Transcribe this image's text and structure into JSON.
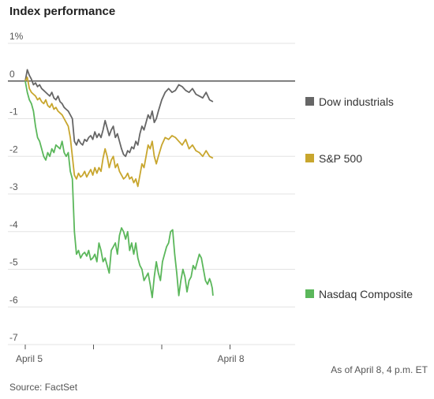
{
  "chart_data": {
    "type": "line",
    "title": "Index performance",
    "y_tick_labels": [
      "1%",
      "0",
      "-1",
      "-2",
      "-3",
      "-4",
      "-5",
      "-6",
      "-7"
    ],
    "y_ticks": [
      1,
      0,
      -1,
      -2,
      -3,
      -4,
      -5,
      -6,
      -7
    ],
    "ylim": [
      -7,
      1
    ],
    "x_tick_labels": [
      "April 5",
      "April 8"
    ],
    "x_day_ticks": [
      "April 5",
      "",
      "",
      "April 8",
      ""
    ],
    "grid": "horizontal",
    "note": "As of April 8, 4 p.m. ET",
    "source": "Source: FactSet",
    "series": [
      {
        "name": "Dow industrials",
        "color": "#666666",
        "values": [
          0,
          0.3,
          0.15,
          0.05,
          -0.1,
          -0.05,
          -0.15,
          -0.1,
          -0.2,
          -0.25,
          -0.3,
          -0.35,
          -0.4,
          -0.3,
          -0.45,
          -0.5,
          -0.4,
          -0.55,
          -0.6,
          -0.7,
          -0.75,
          -0.8,
          -0.9,
          -1.0,
          -1.6,
          -1.7,
          -1.55,
          -1.65,
          -1.7,
          -1.55,
          -1.6,
          -1.5,
          -1.45,
          -1.55,
          -1.35,
          -1.5,
          -1.4,
          -1.5,
          -1.3,
          -1.05,
          -1.25,
          -1.45,
          -1.3,
          -1.2,
          -1.5,
          -1.4,
          -1.6,
          -1.8,
          -1.95,
          -2.0,
          -1.85,
          -1.9,
          -1.75,
          -1.8,
          -1.6,
          -1.7,
          -1.4,
          -1.2,
          -1.3,
          -1.1,
          -0.9,
          -1.0,
          -0.8,
          -1.1,
          -1.0,
          -0.8,
          -0.5,
          -0.3,
          -0.2,
          -0.3,
          -0.25,
          -0.1,
          -0.15,
          -0.25,
          -0.3,
          -0.2,
          -0.35,
          -0.4,
          -0.45,
          -0.3,
          -0.5,
          -0.55
        ],
        "x_days": [
          0.0,
          0.03,
          0.06,
          0.09,
          0.12,
          0.15,
          0.18,
          0.21,
          0.24,
          0.27,
          0.3,
          0.33,
          0.36,
          0.39,
          0.42,
          0.45,
          0.48,
          0.51,
          0.54,
          0.57,
          0.6,
          0.63,
          0.66,
          0.69,
          0.72,
          0.75,
          0.78,
          0.81,
          0.84,
          0.87,
          0.9,
          0.93,
          0.96,
          0.99,
          1.02,
          1.05,
          1.08,
          1.11,
          1.14,
          1.17,
          1.2,
          1.23,
          1.26,
          1.29,
          1.32,
          1.35,
          1.38,
          1.41,
          1.44,
          1.47,
          1.5,
          1.53,
          1.56,
          1.59,
          1.62,
          1.65,
          1.68,
          1.71,
          1.74,
          1.77,
          1.8,
          1.83,
          1.86,
          1.89,
          1.92,
          1.95,
          2.0,
          2.05,
          2.1,
          2.15,
          2.2,
          2.25,
          2.3,
          2.35,
          2.4,
          2.45,
          2.5,
          2.55,
          2.6,
          2.65,
          2.7,
          2.75
        ]
      },
      {
        "name": "S&P 500",
        "color": "#c8a62e",
        "values": [
          0,
          0.1,
          -0.2,
          -0.3,
          -0.35,
          -0.4,
          -0.5,
          -0.45,
          -0.55,
          -0.6,
          -0.5,
          -0.65,
          -0.7,
          -0.6,
          -0.75,
          -0.7,
          -0.8,
          -0.85,
          -0.9,
          -1.0,
          -1.1,
          -1.2,
          -1.5,
          -2.0,
          -2.5,
          -2.6,
          -2.45,
          -2.55,
          -2.5,
          -2.4,
          -2.55,
          -2.45,
          -2.35,
          -2.5,
          -2.3,
          -2.45,
          -2.3,
          -2.4,
          -2.05,
          -1.8,
          -2.0,
          -2.3,
          -2.1,
          -2.0,
          -2.3,
          -2.2,
          -2.4,
          -2.5,
          -2.6,
          -2.55,
          -2.45,
          -2.6,
          -2.55,
          -2.7,
          -2.6,
          -2.8,
          -2.5,
          -2.2,
          -2.3,
          -2.0,
          -1.7,
          -1.8,
          -1.6,
          -2.0,
          -2.2,
          -2.0,
          -1.7,
          -1.5,
          -1.55,
          -1.45,
          -1.5,
          -1.6,
          -1.7,
          -1.55,
          -1.8,
          -1.7,
          -1.85,
          -1.9,
          -2.0,
          -1.85,
          -2.0,
          -2.05
        ],
        "x_days": [
          0.0,
          0.03,
          0.06,
          0.09,
          0.12,
          0.15,
          0.18,
          0.21,
          0.24,
          0.27,
          0.3,
          0.33,
          0.36,
          0.39,
          0.42,
          0.45,
          0.48,
          0.51,
          0.54,
          0.57,
          0.6,
          0.63,
          0.66,
          0.69,
          0.72,
          0.75,
          0.78,
          0.81,
          0.84,
          0.87,
          0.9,
          0.93,
          0.96,
          0.99,
          1.02,
          1.05,
          1.08,
          1.11,
          1.14,
          1.17,
          1.2,
          1.23,
          1.26,
          1.29,
          1.32,
          1.35,
          1.38,
          1.41,
          1.44,
          1.47,
          1.5,
          1.53,
          1.56,
          1.59,
          1.62,
          1.65,
          1.68,
          1.71,
          1.74,
          1.77,
          1.8,
          1.83,
          1.86,
          1.89,
          1.92,
          1.95,
          2.0,
          2.05,
          2.1,
          2.15,
          2.2,
          2.25,
          2.3,
          2.35,
          2.4,
          2.45,
          2.5,
          2.55,
          2.6,
          2.65,
          2.7,
          2.75
        ]
      },
      {
        "name": "Nasdaq Composite",
        "color": "#5bb75b",
        "values": [
          0,
          -0.3,
          -0.5,
          -0.6,
          -0.8,
          -1.2,
          -1.5,
          -1.6,
          -1.8,
          -2.0,
          -2.1,
          -1.9,
          -2.0,
          -1.8,
          -1.9,
          -1.7,
          -1.75,
          -1.8,
          -1.6,
          -1.9,
          -2.0,
          -1.9,
          -2.4,
          -2.6,
          -4.0,
          -4.6,
          -4.5,
          -4.7,
          -4.6,
          -4.55,
          -4.65,
          -4.5,
          -4.75,
          -4.7,
          -4.6,
          -4.8,
          -4.3,
          -4.5,
          -4.8,
          -4.7,
          -4.9,
          -5.1,
          -4.5,
          -4.4,
          -4.3,
          -4.6,
          -4.1,
          -3.9,
          -4.0,
          -4.2,
          -4.0,
          -4.5,
          -4.3,
          -4.6,
          -4.3,
          -4.7,
          -4.9,
          -5.0,
          -5.3,
          -5.2,
          -5.1,
          -5.4,
          -5.75,
          -5.2,
          -4.8,
          -5.1,
          -5.3,
          -4.8,
          -4.6,
          -4.4,
          -4.3,
          -4.0,
          -3.95,
          -4.6,
          -5.1,
          -5.7,
          -5.3,
          -5.0,
          -5.2,
          -5.6,
          -5.3,
          -5.2,
          -4.9,
          -5.0,
          -4.8,
          -4.6,
          -4.7,
          -5.0,
          -5.3,
          -5.4,
          -5.25,
          -5.35,
          -5.5,
          -5.7
        ],
        "x_days": [
          0.0,
          0.03,
          0.06,
          0.09,
          0.12,
          0.15,
          0.18,
          0.21,
          0.24,
          0.27,
          0.3,
          0.33,
          0.36,
          0.39,
          0.42,
          0.45,
          0.48,
          0.51,
          0.54,
          0.57,
          0.6,
          0.63,
          0.66,
          0.69,
          0.72,
          0.75,
          0.78,
          0.81,
          0.84,
          0.87,
          0.9,
          0.93,
          0.96,
          0.99,
          1.02,
          1.05,
          1.08,
          1.11,
          1.14,
          1.17,
          1.2,
          1.23,
          1.26,
          1.29,
          1.32,
          1.35,
          1.38,
          1.41,
          1.44,
          1.47,
          1.5,
          1.53,
          1.56,
          1.59,
          1.62,
          1.65,
          1.68,
          1.71,
          1.74,
          1.77,
          1.8,
          1.83,
          1.86,
          1.89,
          1.92,
          1.95,
          1.98,
          2.01,
          2.04,
          2.07,
          2.1,
          2.13,
          2.16,
          2.19,
          2.22,
          2.25,
          2.28,
          2.31,
          2.34,
          2.37,
          2.4,
          2.43,
          2.46,
          2.49,
          2.52,
          2.55,
          2.58,
          2.61,
          2.64,
          2.67,
          2.7,
          2.72,
          2.74,
          2.75
        ]
      }
    ]
  }
}
